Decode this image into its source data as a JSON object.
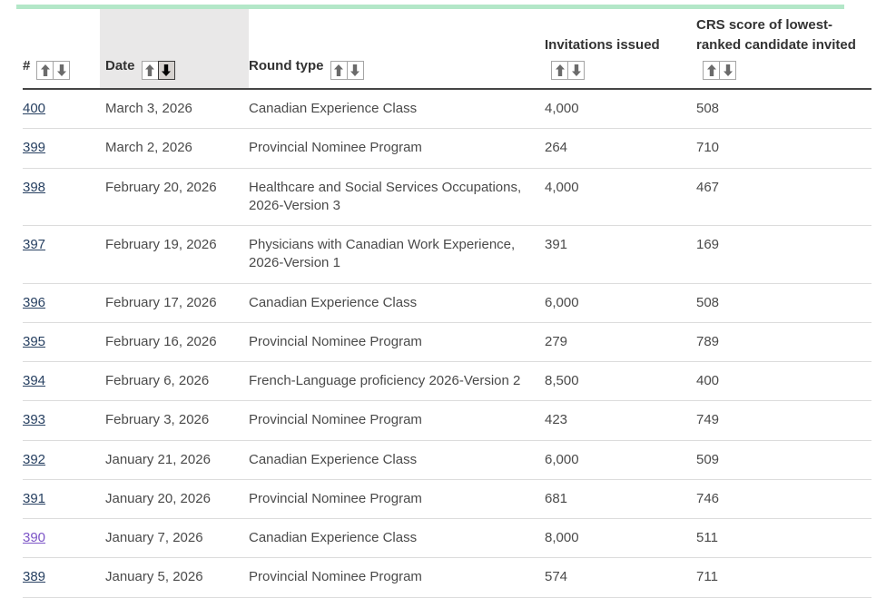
{
  "page": {
    "top_accent_color": "#b3e7c8",
    "highlight_column_color": "#e9e8e8",
    "link_color": "#284162",
    "visited_link_color": "#7d55c7"
  },
  "icons": {
    "sort_ascending": "arrow-up",
    "sort_descending": "arrow-down"
  },
  "table": {
    "columns": [
      {
        "label": "#",
        "sortable": true,
        "active_sort": null
      },
      {
        "label": "Date",
        "sortable": true,
        "active_sort": "descending",
        "highlighted": true
      },
      {
        "label": "Round type",
        "sortable": true,
        "active_sort": null
      },
      {
        "label": "Invitations issued",
        "sortable": true,
        "active_sort": null
      },
      {
        "label": "CRS score of lowest-ranked candidate invited",
        "sortable": true,
        "active_sort": null
      }
    ],
    "rows": [
      {
        "number": "400",
        "date": "March 3, 2026",
        "round_type": "Canadian Experience Class",
        "invitations": "4,000",
        "crs": "508",
        "visited": false
      },
      {
        "number": "399",
        "date": "March 2, 2026",
        "round_type": "Provincial Nominee Program",
        "invitations": "264",
        "crs": "710",
        "visited": false
      },
      {
        "number": "398",
        "date": "February 20, 2026",
        "round_type": "Healthcare and Social Services Occupations, 2026-Version 3",
        "invitations": "4,000",
        "crs": "467",
        "visited": false
      },
      {
        "number": "397",
        "date": "February 19, 2026",
        "round_type": "Physicians with Canadian Work Experience, 2026-Version 1",
        "invitations": "391",
        "crs": "169",
        "visited": false
      },
      {
        "number": "396",
        "date": "February 17, 2026",
        "round_type": "Canadian Experience Class",
        "invitations": "6,000",
        "crs": "508",
        "visited": false
      },
      {
        "number": "395",
        "date": "February 16, 2026",
        "round_type": "Provincial Nominee Program",
        "invitations": "279",
        "crs": "789",
        "visited": false
      },
      {
        "number": "394",
        "date": "February 6, 2026",
        "round_type": "French-Language proficiency 2026-Version 2",
        "invitations": "8,500",
        "crs": "400",
        "visited": false
      },
      {
        "number": "393",
        "date": "February 3, 2026",
        "round_type": "Provincial Nominee Program",
        "invitations": "423",
        "crs": "749",
        "visited": false
      },
      {
        "number": "392",
        "date": "January 21, 2026",
        "round_type": "Canadian Experience Class",
        "invitations": "6,000",
        "crs": "509",
        "visited": false
      },
      {
        "number": "391",
        "date": "January 20, 2026",
        "round_type": "Provincial Nominee Program",
        "invitations": "681",
        "crs": "746",
        "visited": false
      },
      {
        "number": "390",
        "date": "January 7, 2026",
        "round_type": "Canadian Experience Class",
        "invitations": "8,000",
        "crs": "511",
        "visited": true
      },
      {
        "number": "389",
        "date": "January 5, 2026",
        "round_type": "Provincial Nominee Program",
        "invitations": "574",
        "crs": "711",
        "visited": false
      }
    ]
  }
}
